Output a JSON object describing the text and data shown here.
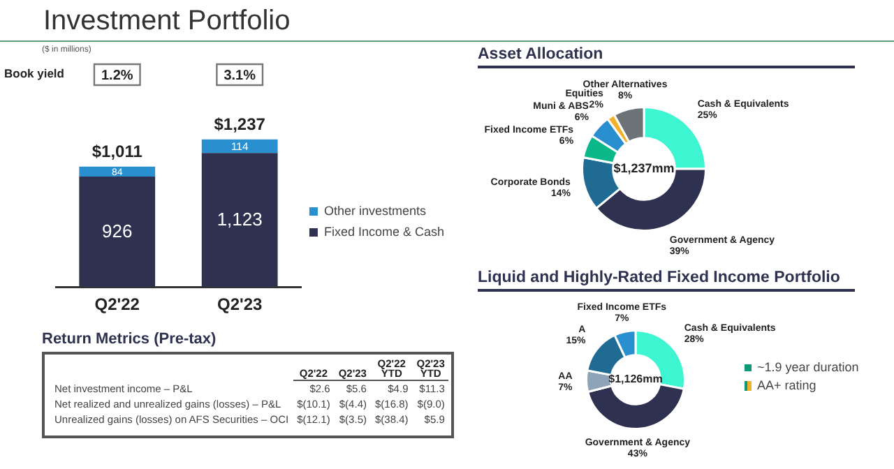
{
  "chart_data": [
    {
      "type": "bar",
      "title": "Investment Portfolio",
      "subtitle": "($ in millions)",
      "categories": [
        "Q2'22",
        "Q2'23"
      ],
      "stacked": true,
      "legend": "right",
      "totals": [
        "$1,011",
        "$1,237"
      ],
      "annotations": [
        "Book yield",
        "1.2%",
        "3.1%"
      ],
      "series": [
        {
          "name": "Fixed Income & Cash",
          "color": "#2e3250",
          "values": [
            926,
            1123
          ],
          "value_labels": [
            "926",
            "1,123"
          ]
        },
        {
          "name": "Other investments",
          "color": "#2a8fcf",
          "values": [
            84,
            114
          ],
          "value_labels": [
            "84",
            "114"
          ]
        }
      ]
    },
    {
      "type": "donut",
      "title": "Asset Allocation",
      "categories": [
        "Cash & Equivalents",
        "Government & Agency",
        "Corporate Bonds",
        "Fixed Income ETFs",
        "Muni & ABS",
        "Equities",
        "Other Alternatives"
      ],
      "values": [
        25,
        39,
        14,
        6,
        6,
        2,
        8
      ],
      "value_labels": [
        "25%",
        "39%",
        "14%",
        "6%",
        "6%",
        "2%",
        "8%"
      ],
      "colors": [
        "#3ef5d2",
        "#2e3250",
        "#1f6b94",
        "#0ab88a",
        "#2a8fcf",
        "#f2b12a",
        "#6e7378"
      ],
      "annotations": [
        "$1,237mm"
      ]
    },
    {
      "type": "donut",
      "title": "Liquid and Highly-Rated Fixed Income Portfolio",
      "categories": [
        "Cash & Equivalents",
        "Government & Agency",
        "AA",
        "A",
        "Fixed Income ETFs"
      ],
      "values": [
        28,
        43,
        7,
        15,
        7
      ],
      "value_labels": [
        "28%",
        "43%",
        "7%",
        "15%",
        "7%"
      ],
      "colors": [
        "#3ef5d2",
        "#2e3250",
        "#8fa3b8",
        "#1f6b94",
        "#2a8fcf"
      ],
      "annotations": [
        "$1,126mm",
        "~1.9 year duration",
        "AA+ rating"
      ]
    },
    {
      "type": "other",
      "title": "Return Metrics (Pre-tax)",
      "categories": [
        "Q2'22",
        "Q2'23",
        "Q2'22 YTD",
        "Q2'23 YTD"
      ],
      "y_categories": [
        "Net investment income – P&L",
        "Net realized and unrealized gains (losses) – P&L",
        "Unrealized gains (losses) on AFS Securities – OCI"
      ],
      "cell_labels": [
        [
          "$2.6",
          "$5.6",
          "$4.9",
          "$11.3"
        ],
        [
          "$(10.1)",
          "$(4.4)",
          "$(16.8)",
          "$(9.0)"
        ],
        [
          "$(12.1)",
          "$(3.5)",
          "$(38.4)",
          "$5.9"
        ]
      ]
    }
  ]
}
